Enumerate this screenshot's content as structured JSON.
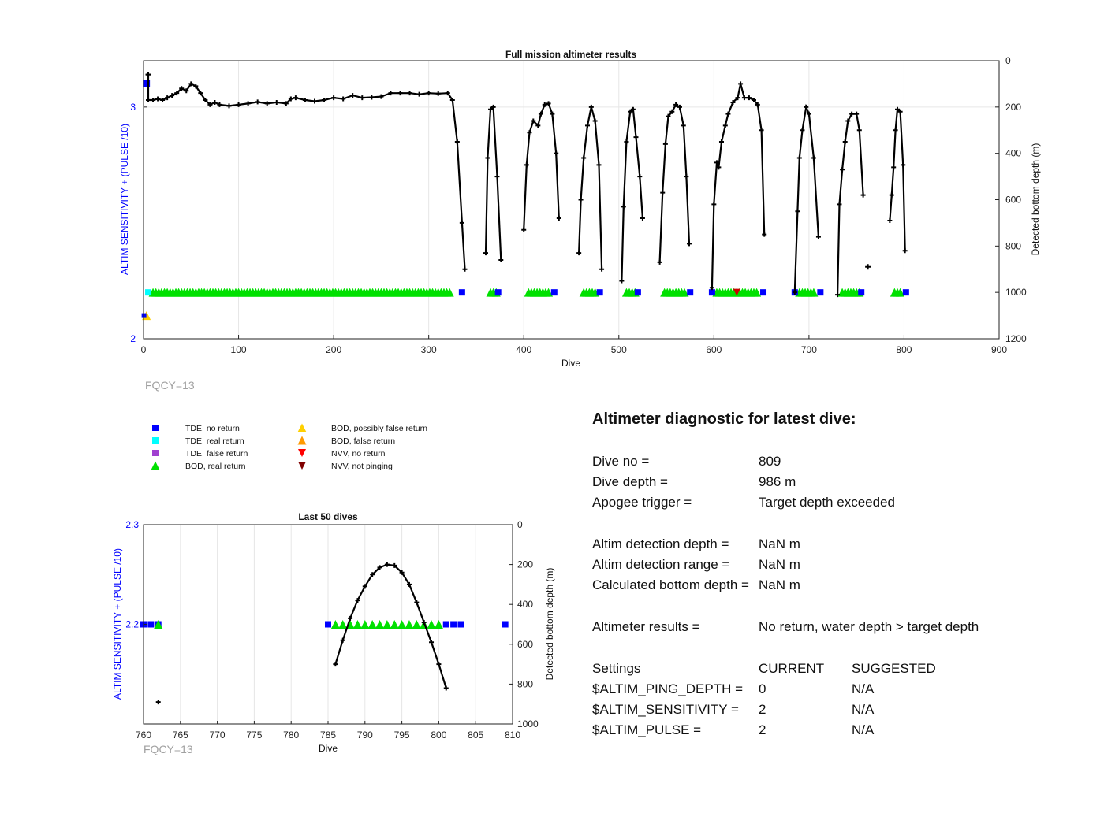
{
  "fqcy_label": "FQCY=13",
  "chart_data": [
    {
      "type": "scatter",
      "title": "Full mission altimeter results",
      "xlabel": "Dive",
      "ylabel_left": "ALTIM SENSITIVITY + (PULSE /10)",
      "ylabel_right": "Detected bottom depth (m)",
      "xlim": [
        0,
        900
      ],
      "xticks": [
        0,
        100,
        200,
        300,
        400,
        500,
        600,
        700,
        800,
        900
      ],
      "ylim_left": [
        2,
        3.2
      ],
      "yticks_left": [
        2,
        3
      ],
      "ylim_right": [
        0,
        1200
      ],
      "yticks_right": [
        0,
        200,
        400,
        600,
        800,
        1000,
        1200
      ],
      "right_axis_reversed": true,
      "grid": true,
      "bottom_depth_line": [
        [
          5,
          60
        ],
        [
          5,
          170
        ],
        [
          10,
          170
        ],
        [
          15,
          165
        ],
        [
          20,
          170
        ],
        [
          25,
          160
        ],
        [
          30,
          150
        ],
        [
          35,
          140
        ],
        [
          40,
          120
        ],
        [
          45,
          130
        ],
        [
          50,
          100
        ],
        [
          55,
          110
        ],
        [
          60,
          140
        ],
        [
          65,
          170
        ],
        [
          70,
          190
        ],
        [
          75,
          180
        ],
        [
          80,
          190
        ],
        [
          90,
          195
        ],
        [
          100,
          190
        ],
        [
          110,
          185
        ],
        [
          120,
          178
        ],
        [
          130,
          185
        ],
        [
          140,
          180
        ],
        [
          150,
          185
        ],
        [
          155,
          165
        ],
        [
          160,
          160
        ],
        [
          170,
          170
        ],
        [
          180,
          175
        ],
        [
          190,
          170
        ],
        [
          200,
          160
        ],
        [
          210,
          165
        ],
        [
          220,
          150
        ],
        [
          230,
          160
        ],
        [
          240,
          158
        ],
        [
          250,
          155
        ],
        [
          260,
          140
        ],
        [
          270,
          140
        ],
        [
          280,
          140
        ],
        [
          290,
          145
        ],
        [
          300,
          140
        ],
        [
          310,
          142
        ],
        [
          320,
          140
        ],
        [
          325,
          170
        ],
        [
          330,
          350
        ],
        [
          335,
          700
        ],
        [
          338,
          900
        ],
        [
          360,
          830
        ],
        [
          362,
          420
        ],
        [
          365,
          210
        ],
        [
          368,
          200
        ],
        [
          372,
          500
        ],
        [
          376,
          860
        ],
        [
          400,
          730
        ],
        [
          403,
          450
        ],
        [
          406,
          310
        ],
        [
          410,
          260
        ],
        [
          415,
          280
        ],
        [
          418,
          230
        ],
        [
          422,
          190
        ],
        [
          426,
          185
        ],
        [
          430,
          230
        ],
        [
          434,
          400
        ],
        [
          437,
          680
        ],
        [
          458,
          830
        ],
        [
          460,
          600
        ],
        [
          463,
          420
        ],
        [
          467,
          280
        ],
        [
          471,
          200
        ],
        [
          475,
          260
        ],
        [
          479,
          450
        ],
        [
          482,
          900
        ],
        [
          503,
          950
        ],
        [
          505,
          630
        ],
        [
          508,
          350
        ],
        [
          512,
          220
        ],
        [
          515,
          210
        ],
        [
          518,
          330
        ],
        [
          522,
          500
        ],
        [
          525,
          680
        ],
        [
          543,
          870
        ],
        [
          546,
          570
        ],
        [
          549,
          360
        ],
        [
          552,
          240
        ],
        [
          556,
          220
        ],
        [
          560,
          190
        ],
        [
          564,
          200
        ],
        [
          568,
          280
        ],
        [
          571,
          500
        ],
        [
          574,
          790
        ],
        [
          598,
          980
        ],
        [
          600,
          620
        ],
        [
          603,
          440
        ],
        [
          605,
          460
        ],
        [
          608,
          350
        ],
        [
          612,
          280
        ],
        [
          615,
          230
        ],
        [
          620,
          180
        ],
        [
          625,
          160
        ],
        [
          628,
          100
        ],
        [
          632,
          160
        ],
        [
          637,
          160
        ],
        [
          642,
          170
        ],
        [
          646,
          190
        ],
        [
          650,
          300
        ],
        [
          653,
          750
        ],
        [
          685,
          1000
        ],
        [
          688,
          650
        ],
        [
          690,
          420
        ],
        [
          693,
          300
        ],
        [
          697,
          200
        ],
        [
          700,
          230
        ],
        [
          705,
          420
        ],
        [
          710,
          760
        ],
        [
          730,
          1010
        ],
        [
          732,
          620
        ],
        [
          735,
          470
        ],
        [
          738,
          350
        ],
        [
          741,
          260
        ],
        [
          745,
          230
        ],
        [
          750,
          230
        ],
        [
          753,
          300
        ],
        [
          757,
          580
        ],
        [
          785,
          690
        ],
        [
          787,
          580
        ],
        [
          789,
          460
        ],
        [
          791,
          300
        ],
        [
          793,
          210
        ],
        [
          796,
          220
        ],
        [
          799,
          450
        ],
        [
          801,
          820
        ]
      ],
      "outlier_points": [
        [
          5,
          60
        ],
        [
          762,
          890
        ]
      ],
      "markers_left_axis": {
        "TDE_no_return_y": 2.2,
        "TDE_real_return_y": 2.2,
        "BOD_real_return_y": 2.2,
        "BOD_false_return": [
          [
            3,
            2.1
          ]
        ],
        "extra_TDE_no_return": [
          [
            3,
            3.1
          ]
        ]
      }
    },
    {
      "type": "scatter",
      "title": "Last 50 dives",
      "xlabel": "Dive",
      "ylabel_left": "ALTIM SENSITIVITY + (PULSE /10)",
      "ylabel_right": "Detected bottom depth (m)",
      "xlim": [
        760,
        810
      ],
      "xticks": [
        760,
        765,
        770,
        775,
        780,
        785,
        790,
        795,
        800,
        805,
        810
      ],
      "ylim_left": [
        2.1,
        2.3
      ],
      "yticks_left": [
        2.2,
        2.3
      ],
      "ylim_right": [
        0,
        1000
      ],
      "yticks_right": [
        0,
        200,
        400,
        600,
        800,
        1000
      ],
      "right_axis_reversed": true,
      "grid": true,
      "bottom_depth_line": [
        [
          786,
          700
        ],
        [
          787,
          580
        ],
        [
          788,
          470
        ],
        [
          789,
          380
        ],
        [
          790,
          310
        ],
        [
          791,
          250
        ],
        [
          792,
          215
        ],
        [
          793,
          200
        ],
        [
          794,
          205
        ],
        [
          795,
          240
        ],
        [
          796,
          300
        ],
        [
          797,
          390
        ],
        [
          798,
          490
        ],
        [
          799,
          590
        ],
        [
          800,
          700
        ],
        [
          801,
          820
        ]
      ],
      "outlier_points": [
        [
          762,
          890
        ]
      ],
      "TDE_no_return_dives": [
        760,
        761,
        762,
        785,
        801,
        802,
        803,
        809
      ],
      "BOD_real_return_dives": [
        762,
        786,
        787,
        788,
        789,
        790,
        791,
        792,
        793,
        794,
        795,
        796,
        797,
        798,
        799,
        800
      ],
      "marker_y": 2.2
    }
  ],
  "legend": {
    "col1": [
      {
        "label": "TDE, no return",
        "shape": "square",
        "color": "#0000ff"
      },
      {
        "label": "TDE, real return",
        "shape": "square",
        "color": "#00ffff"
      },
      {
        "label": "TDE, false return",
        "shape": "square",
        "color": "#a040d0"
      },
      {
        "label": "BOD, real return",
        "shape": "triangle-up",
        "color": "#00e000"
      }
    ],
    "col2": [
      {
        "label": "BOD, possibly false return",
        "shape": "triangle-up",
        "color": "#ffd000"
      },
      {
        "label": "BOD, false return",
        "shape": "triangle-up",
        "color": "#ff9a00"
      },
      {
        "label": "NVV, no return",
        "shape": "triangle-down",
        "color": "#ff0000"
      },
      {
        "label": "NVV, not pinging",
        "shape": "triangle-down",
        "color": "#800000"
      }
    ]
  },
  "diagnostic": {
    "heading": "Altimeter diagnostic for latest dive:",
    "dive_no_label": "Dive no =",
    "dive_no_value": "809",
    "dive_depth_label": "Dive depth =",
    "dive_depth_value": "986 m",
    "apogee_label": "Apogee trigger =",
    "apogee_value": "Target depth exceeded",
    "altim_detection_depth_label": "Altim detection depth =",
    "altim_detection_depth_value": "NaN m",
    "altim_detection_range_label": "Altim detection range =",
    "altim_detection_range_value": "NaN m",
    "calc_bottom_label": "Calculated bottom depth =",
    "calc_bottom_value": "NaN m",
    "results_label": "Altimeter results =",
    "results_value": "No return, water depth > target depth",
    "settings_label": "Settings",
    "current_label": "CURRENT",
    "suggested_label": "SUGGESTED",
    "ping_depth_label": "$ALTIM_PING_DEPTH =",
    "ping_depth_current": "0",
    "ping_depth_suggested": "N/A",
    "sensitivity_label": "$ALTIM_SENSITIVITY =",
    "sensitivity_current": "2",
    "sensitivity_suggested": "N/A",
    "pulse_label": "$ALTIM_PULSE =",
    "pulse_current": "2",
    "pulse_suggested": "N/A"
  }
}
